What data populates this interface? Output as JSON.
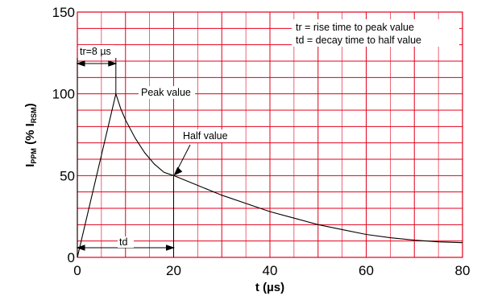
{
  "chart_data": {
    "type": "line",
    "xlabel": "t  (µs)",
    "ylabel": {
      "base": "I",
      "sub": "PPM",
      "mid": " (% I",
      "sub2": "RSM",
      "end": ")"
    },
    "xlim": [
      0,
      80
    ],
    "ylim": [
      0,
      150
    ],
    "x_ticks": [
      "0",
      "20",
      "40",
      "60",
      "80"
    ],
    "y_ticks": [
      "0",
      "50",
      "100",
      "150"
    ],
    "grid": true,
    "grid_color": "#e0001b",
    "series": [
      {
        "x": [
          0,
          8,
          9,
          10,
          12,
          14,
          16,
          18,
          20,
          25,
          30,
          35,
          40,
          45,
          50,
          55,
          60,
          65,
          70,
          75,
          80
        ],
        "y": [
          0,
          100,
          91,
          84,
          73,
          64,
          57,
          52,
          50,
          44,
          38,
          33,
          28,
          24,
          20,
          17,
          14,
          12,
          10.5,
          9.5,
          9
        ]
      }
    ],
    "annotations": {
      "legend_line1": "tr = rise time to peak value",
      "legend_line2": "td = decay time to half value",
      "tr_label": "tr=8 µs",
      "peak_label": "Peak value",
      "half_label": "Half value",
      "td_label": "td"
    }
  }
}
